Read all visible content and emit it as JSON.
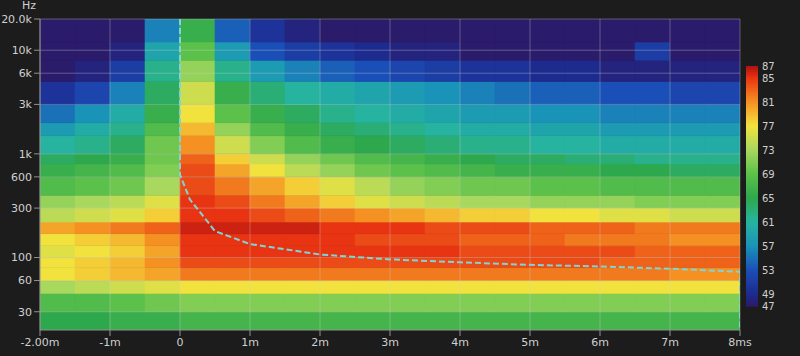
{
  "chart_data": {
    "type": "heatmap",
    "y_label": "Hz",
    "log": "y",
    "grid": true,
    "xlim": [
      -2,
      8
    ],
    "ylim": [
      20,
      20000
    ],
    "xticks": [
      {
        "value": -2,
        "label": "-2.00m"
      },
      {
        "value": -1,
        "label": "-1m"
      },
      0,
      {
        "value": 1,
        "label": "1m"
      },
      {
        "value": 2,
        "label": "2m"
      },
      {
        "value": 3,
        "label": "3m"
      },
      {
        "value": 4,
        "label": "4m"
      },
      {
        "value": 5,
        "label": "5m"
      },
      {
        "value": 6,
        "label": "6m"
      },
      {
        "value": 7,
        "label": "7m"
      },
      {
        "value": 8,
        "label": "8ms"
      }
    ],
    "yticks": [
      30,
      60,
      100,
      300,
      600,
      {
        "value": 1000,
        "label": "1k"
      },
      {
        "value": 3000,
        "label": "3k"
      },
      {
        "value": 6000,
        "label": "6k"
      },
      {
        "value": 10000,
        "label": "10k"
      },
      {
        "value": 20000,
        "label": "20.0k"
      }
    ],
    "x_edges": [
      -2,
      -1.5,
      -1,
      -0.5,
      0,
      0.5,
      1,
      1.5,
      2,
      2.5,
      3,
      3.5,
      4,
      4.5,
      5,
      5.5,
      6,
      6.5,
      7,
      7.5,
      8
    ],
    "y_edges": [
      20,
      30,
      45,
      60,
      80,
      100,
      130,
      170,
      220,
      300,
      400,
      600,
      800,
      1000,
      1500,
      2000,
      3000,
      5000,
      8000,
      12000,
      20000
    ],
    "z": [
      [
        65,
        65,
        66,
        66,
        67,
        67,
        67,
        67,
        67,
        67,
        67,
        67,
        67,
        67,
        67,
        67,
        67,
        67,
        67,
        67
      ],
      [
        68,
        68,
        69,
        70,
        71,
        71,
        71,
        71,
        71,
        71,
        71,
        71,
        71,
        71,
        71,
        71,
        71,
        71,
        71,
        71
      ],
      [
        73,
        74,
        75,
        76,
        77,
        77,
        77,
        77,
        77,
        77,
        77,
        77,
        77,
        77,
        77,
        77,
        77,
        77,
        77,
        77
      ],
      [
        77,
        78,
        79,
        80,
        82,
        82,
        82,
        82,
        82,
        82,
        82,
        82,
        82,
        82,
        82,
        82,
        82,
        82,
        81,
        81
      ],
      [
        77,
        78,
        79,
        81,
        84,
        84,
        84,
        84,
        84,
        84,
        84,
        84,
        84,
        84,
        84,
        84,
        83,
        83,
        83,
        83
      ],
      [
        76,
        77,
        78,
        80,
        85,
        85,
        85,
        85,
        85,
        85,
        85,
        85,
        84,
        84,
        84,
        84,
        84,
        83,
        83,
        83
      ],
      [
        77,
        78,
        79,
        81,
        85,
        85,
        85,
        85,
        85,
        84,
        84,
        84,
        83,
        83,
        83,
        82,
        82,
        82,
        81,
        81
      ],
      [
        80,
        81,
        82,
        83,
        86,
        86,
        86,
        86,
        85,
        85,
        85,
        84,
        84,
        84,
        83,
        83,
        83,
        82,
        82,
        82
      ],
      [
        74,
        75,
        76,
        78,
        85,
        85,
        84,
        83,
        82,
        81,
        80,
        79,
        78,
        78,
        77,
        77,
        76,
        76,
        75,
        75
      ],
      [
        72,
        73,
        74,
        76,
        85,
        84,
        82,
        80,
        78,
        76,
        75,
        74,
        73,
        73,
        72,
        72,
        72,
        71,
        71,
        71
      ],
      [
        68,
        69,
        70,
        73,
        84,
        82,
        80,
        78,
        76,
        74,
        72,
        71,
        70,
        70,
        69,
        69,
        68,
        68,
        68,
        68
      ],
      [
        66,
        67,
        68,
        71,
        84,
        80,
        77,
        74,
        72,
        70,
        69,
        68,
        67,
        66,
        66,
        66,
        65,
        65,
        64,
        64
      ],
      [
        64,
        65,
        66,
        70,
        83,
        78,
        75,
        72,
        70,
        68,
        67,
        66,
        65,
        64,
        64,
        63,
        63,
        62,
        62,
        62
      ],
      [
        61,
        62,
        64,
        70,
        81,
        75,
        71,
        68,
        66,
        65,
        64,
        63,
        62,
        62,
        61,
        61,
        60,
        60,
        60,
        60
      ],
      [
        58,
        60,
        62,
        68,
        79,
        72,
        68,
        66,
        64,
        63,
        62,
        61,
        60,
        60,
        59,
        59,
        58,
        58,
        58,
        58
      ],
      [
        55,
        57,
        60,
        66,
        77,
        69,
        66,
        64,
        62,
        61,
        60,
        59,
        58,
        58,
        57,
        57,
        56,
        56,
        56,
        56
      ],
      [
        50,
        52,
        56,
        64,
        75,
        66,
        63,
        61,
        60,
        59,
        58,
        57,
        56,
        55,
        54,
        54,
        53,
        53,
        52,
        52
      ],
      [
        47,
        48,
        51,
        62,
        72,
        62,
        58,
        56,
        54,
        53,
        52,
        51,
        50,
        50,
        49,
        49,
        48,
        48,
        48,
        48
      ],
      [
        47,
        47,
        48,
        59,
        69,
        58,
        53,
        51,
        50,
        49,
        48,
        48,
        47,
        47,
        47,
        47,
        47,
        51,
        47,
        47
      ],
      [
        47,
        47,
        47,
        56,
        66,
        54,
        50,
        48,
        47,
        47,
        47,
        47,
        47,
        47,
        47,
        47,
        47,
        47,
        47,
        47
      ]
    ],
    "zlim": [
      47,
      87
    ],
    "zticks": [
      47,
      49,
      53,
      57,
      61,
      65,
      69,
      73,
      77,
      81,
      85,
      87
    ],
    "contour": {
      "color": "#80d4d4",
      "line_style": "dashed",
      "x": [
        0,
        0,
        0.14,
        0.5,
        1,
        2,
        3,
        4,
        5,
        6,
        7,
        8,
        8
      ],
      "y": [
        20000,
        630,
        365,
        180,
        135,
        107,
        96,
        90,
        85,
        82,
        78,
        73,
        20
      ]
    }
  }
}
